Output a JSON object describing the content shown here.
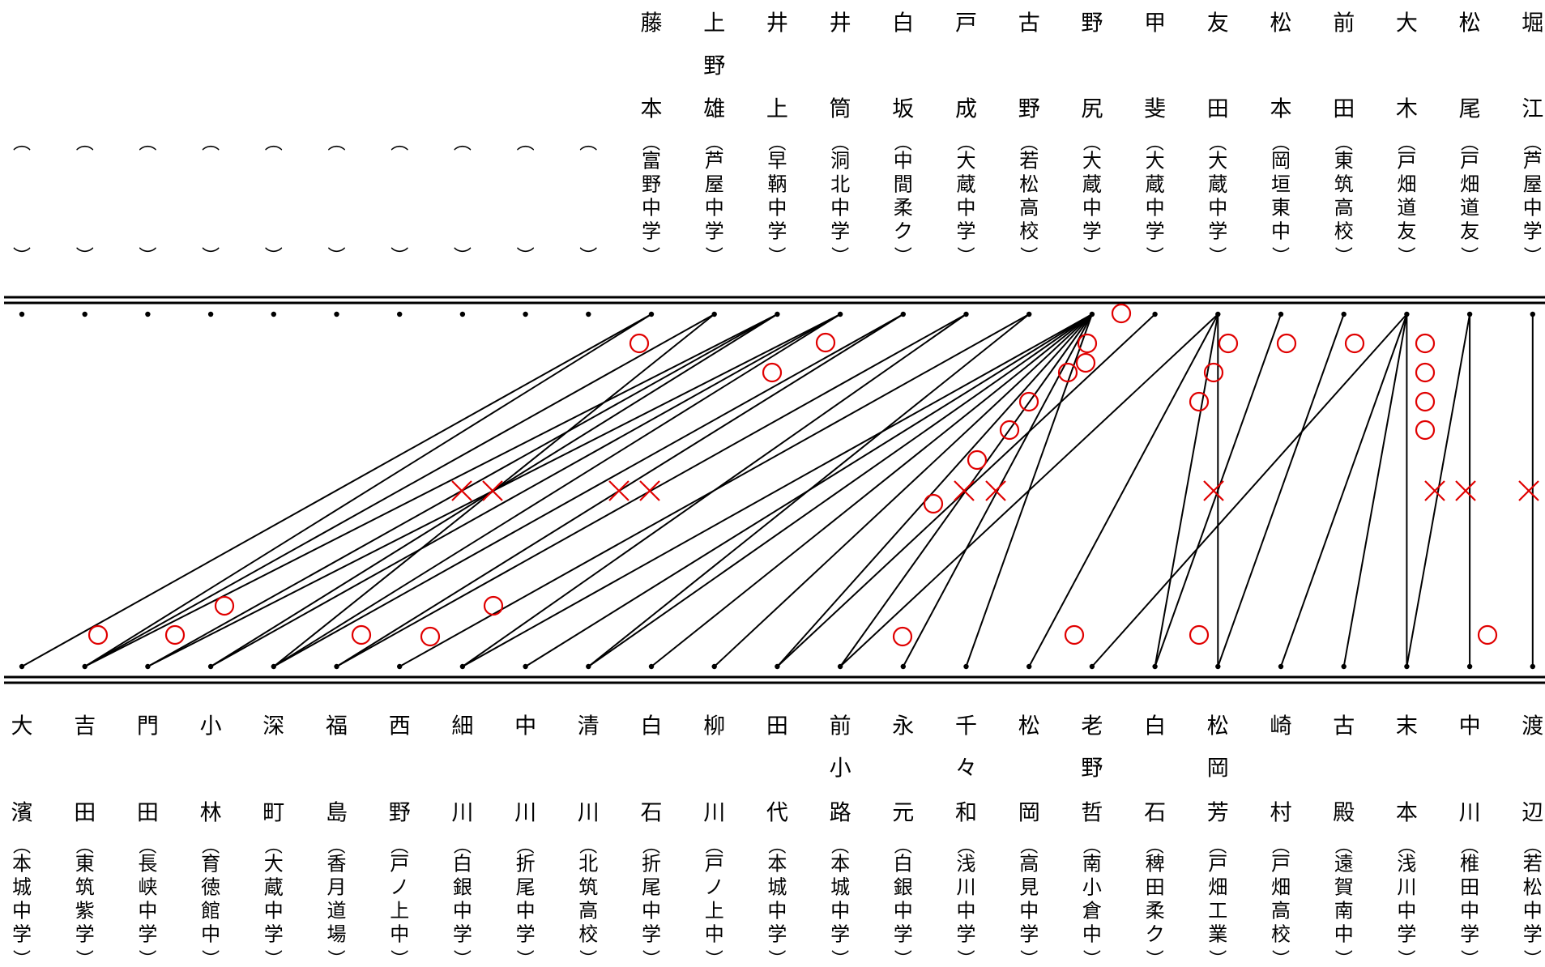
{
  "colors": {
    "ink": "#000000",
    "mark": "#e00000"
  },
  "top_players": [
    {
      "name": "",
      "school": ""
    },
    {
      "name": "",
      "school": ""
    },
    {
      "name": "",
      "school": ""
    },
    {
      "name": "",
      "school": ""
    },
    {
      "name": "",
      "school": ""
    },
    {
      "name": "",
      "school": ""
    },
    {
      "name": "",
      "school": ""
    },
    {
      "name": "",
      "school": ""
    },
    {
      "name": "",
      "school": ""
    },
    {
      "name": "",
      "school": ""
    },
    {
      "name": "藤本",
      "school": "富野中学"
    },
    {
      "name": "上野雄",
      "school": "芦屋中学"
    },
    {
      "name": "井上",
      "school": "早鞆中学"
    },
    {
      "name": "井筒",
      "school": "洞北中学"
    },
    {
      "name": "白坂",
      "school": "中間柔ク"
    },
    {
      "name": "戸成",
      "school": "大蔵中学"
    },
    {
      "name": "古野",
      "school": "若松高校"
    },
    {
      "name": "野尻",
      "school": "大蔵中学"
    },
    {
      "name": "甲斐",
      "school": "大蔵中学"
    },
    {
      "name": "友田",
      "school": "大蔵中学"
    },
    {
      "name": "松本",
      "school": "岡垣東中"
    },
    {
      "name": "前田",
      "school": "東筑高校"
    },
    {
      "name": "大木",
      "school": "戸畑道友"
    },
    {
      "name": "松尾",
      "school": "戸畑道友"
    },
    {
      "name": "堀江",
      "school": "芦屋中学"
    }
  ],
  "bottom_players": [
    {
      "name": "大濱",
      "school": "本城中学"
    },
    {
      "name": "吉田",
      "school": "東筑紫学"
    },
    {
      "name": "門田",
      "school": "長峡中学"
    },
    {
      "name": "小林",
      "school": "育徳館中"
    },
    {
      "name": "深町",
      "school": "大蔵中学"
    },
    {
      "name": "福島",
      "school": "香月道場"
    },
    {
      "name": "西野",
      "school": "戸ノ上中"
    },
    {
      "name": "細川",
      "school": "白銀中学"
    },
    {
      "name": "中川",
      "school": "折尾中学"
    },
    {
      "name": "清川",
      "school": "北筑高校"
    },
    {
      "name": "白石",
      "school": "折尾中学"
    },
    {
      "name": "柳川",
      "school": "戸ノ上中"
    },
    {
      "name": "田代",
      "school": "本城中学"
    },
    {
      "name": "前小路",
      "school": "本城中学"
    },
    {
      "name": "永元",
      "school": "白銀中学"
    },
    {
      "name": "千々和",
      "school": "浅川中学"
    },
    {
      "name": "松岡",
      "school": "高見中学"
    },
    {
      "name": "老野哲",
      "school": "南小倉中"
    },
    {
      "name": "白石",
      "school": "稗田柔ク"
    },
    {
      "name": "松岡芳",
      "school": "戸畑工業"
    },
    {
      "name": "崎村",
      "school": "戸畑高校"
    },
    {
      "name": "古殿",
      "school": "遠賀南中"
    },
    {
      "name": "末本",
      "school": "浅川中学"
    },
    {
      "name": "中川",
      "school": "椎田中学"
    },
    {
      "name": "渡辺",
      "school": "若松中学"
    }
  ],
  "connections": [
    [
      10,
      0
    ],
    [
      10,
      1
    ],
    [
      11,
      1
    ],
    [
      12,
      1
    ],
    [
      12,
      2
    ],
    [
      13,
      2
    ],
    [
      13,
      4
    ],
    [
      11,
      4
    ],
    [
      14,
      4
    ],
    [
      15,
      5
    ],
    [
      16,
      6
    ],
    [
      17,
      7
    ],
    [
      17,
      8
    ],
    [
      17,
      9
    ],
    [
      17,
      10
    ],
    [
      17,
      11
    ],
    [
      17,
      12
    ],
    [
      17,
      13
    ],
    [
      17,
      14
    ],
    [
      17,
      15
    ],
    [
      18,
      12
    ],
    [
      19,
      13
    ],
    [
      19,
      16
    ],
    [
      19,
      18
    ],
    [
      19,
      19
    ],
    [
      20,
      18
    ],
    [
      21,
      19
    ],
    [
      22,
      20
    ],
    [
      22,
      21
    ],
    [
      22,
      22
    ],
    [
      23,
      22
    ],
    [
      23,
      23
    ],
    [
      24,
      24
    ],
    [
      22,
      17
    ],
    [
      13,
      3
    ],
    [
      12,
      3
    ],
    [
      14,
      5
    ],
    [
      15,
      7
    ],
    [
      16,
      9
    ]
  ],
  "marks": [
    {
      "type": "circle",
      "count": 1,
      "player": "藤本"
    },
    {
      "type": "circle",
      "count": 1,
      "player": "井筒"
    },
    {
      "type": "circle",
      "count": 1,
      "player": "井上"
    },
    {
      "type": "circle",
      "count": 1,
      "player": "野尻"
    },
    {
      "type": "circle",
      "count": 4,
      "player": "大木"
    },
    {
      "type": "cross",
      "count": 12,
      "player": ""
    }
  ]
}
